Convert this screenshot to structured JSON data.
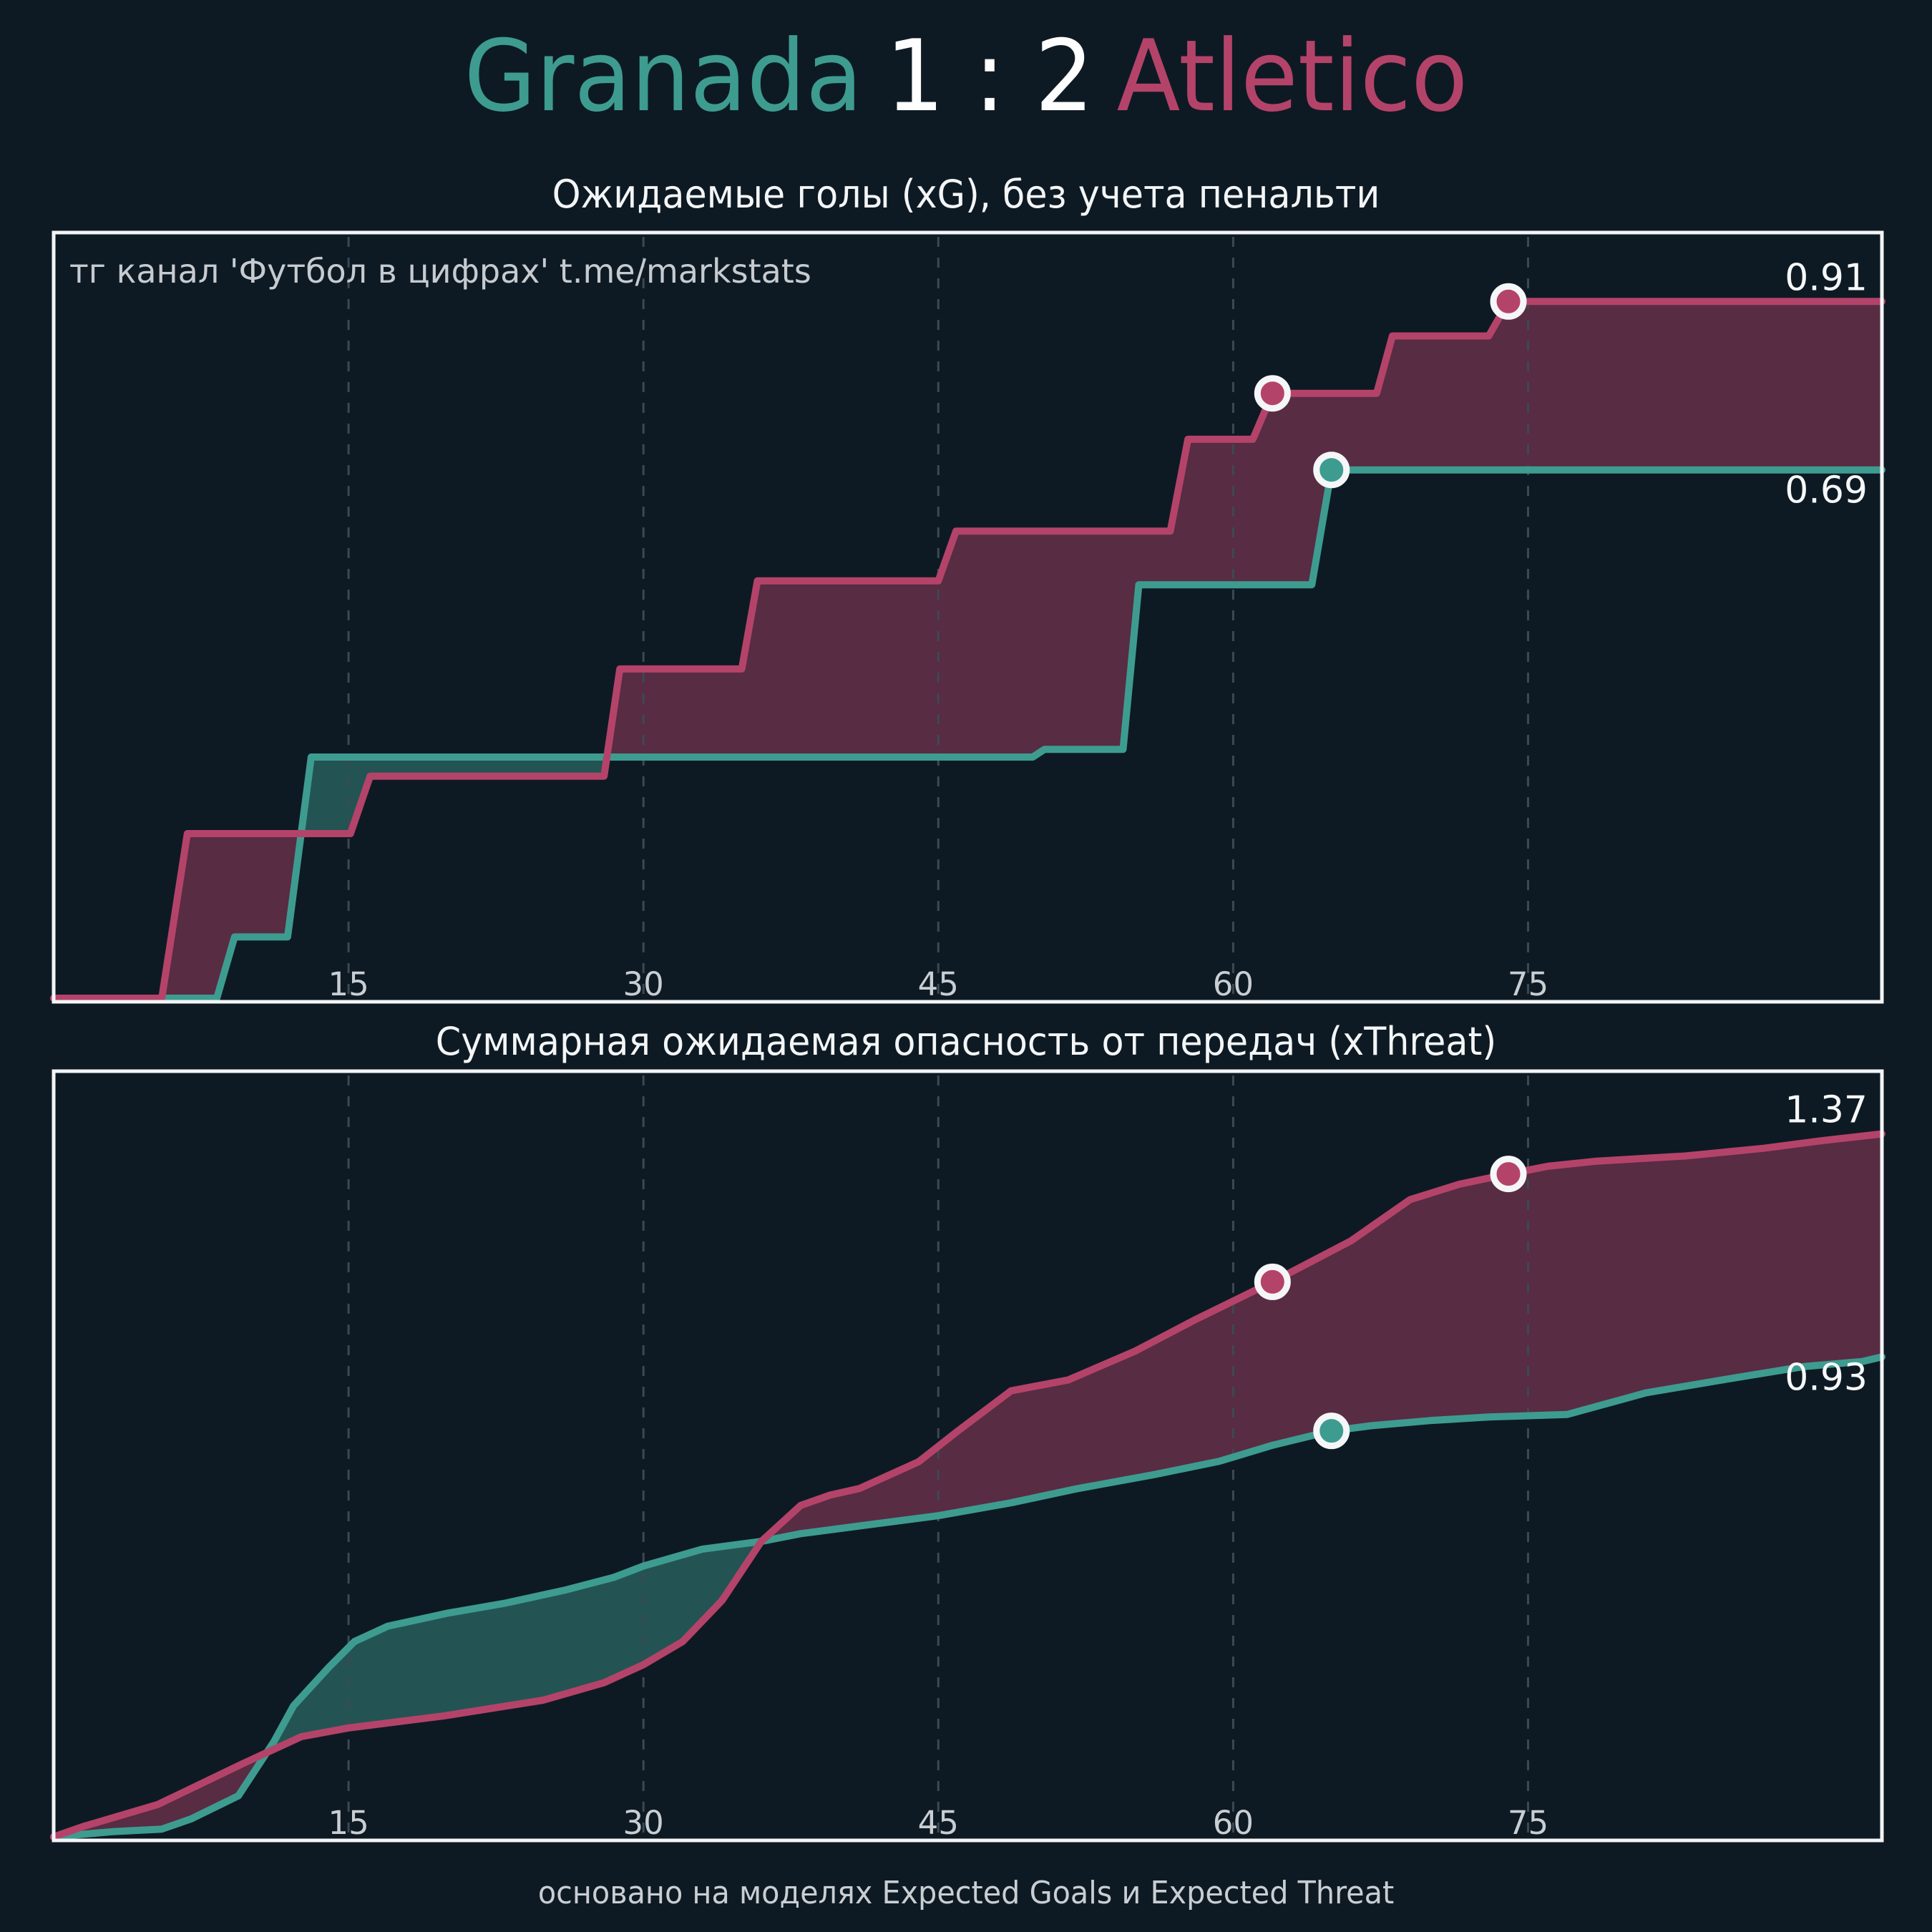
{
  "title": {
    "home_team": "Granada",
    "score": "1 : 2",
    "away_team": "Atletico"
  },
  "footer": "основано на моделях Expected Goals и Expected Threat",
  "colors": {
    "home": "#3d9c8f",
    "away": "#b4436a",
    "background": "#0e1a23",
    "border": "#f2f4f6",
    "grid": "#3d4952",
    "tick_text": "#c9ced3",
    "label_text": "#f5f7f8",
    "marker_ring": "#f5f6f7",
    "fill_opacity": 0.45
  },
  "chart_data": [
    {
      "type": "step-area",
      "title": "Ожидаемые голы (xG), без учета пенальти",
      "watermark": "тг канал 'Футбол в цифрах'  t.me/markstats",
      "xlabel": "",
      "ylabel": "",
      "x_ticks": [
        15,
        30,
        45,
        60,
        75
      ],
      "x_max": 93,
      "y_max": 1.0,
      "grid": "vertical-dashed",
      "legend_position": "none",
      "series": [
        {
          "name": "Granada",
          "role": "home",
          "final_label": "0.69",
          "final_value": 0.69,
          "points": [
            [
              0,
              0
            ],
            [
              8.3,
              0
            ],
            [
              9.2,
              0.08
            ],
            [
              11.9,
              0.08
            ],
            [
              13.1,
              0.315
            ],
            [
              49.8,
              0.315
            ],
            [
              50.4,
              0.325
            ],
            [
              54.4,
              0.325
            ],
            [
              55.2,
              0.54
            ],
            [
              64,
              0.54
            ],
            [
              65,
              0.69
            ],
            [
              93,
              0.69
            ]
          ]
        },
        {
          "name": "Atletico",
          "role": "away",
          "final_label": "0.91",
          "final_value": 0.91,
          "points": [
            [
              0,
              0
            ],
            [
              5.5,
              0
            ],
            [
              6.8,
              0.215
            ],
            [
              15.1,
              0.215
            ],
            [
              16.1,
              0.29
            ],
            [
              28,
              0.29
            ],
            [
              28.8,
              0.43
            ],
            [
              35,
              0.43
            ],
            [
              35.8,
              0.545
            ],
            [
              45,
              0.545
            ],
            [
              45.9,
              0.61
            ],
            [
              56.8,
              0.61
            ],
            [
              57.7,
              0.73
            ],
            [
              61,
              0.73
            ],
            [
              62,
              0.79
            ],
            [
              67.3,
              0.79
            ],
            [
              68.1,
              0.865
            ],
            [
              73,
              0.865
            ],
            [
              74,
              0.91
            ],
            [
              93,
              0.91
            ]
          ]
        }
      ],
      "goal_markers": [
        {
          "team": "away",
          "minute": 62,
          "value": 0.79
        },
        {
          "team": "home",
          "minute": 65,
          "value": 0.69
        },
        {
          "team": "away",
          "minute": 74,
          "value": 0.91
        }
      ]
    },
    {
      "type": "line-area",
      "title": "Суммарная ожидаемая опасность от передач (xThreat)",
      "watermark": "",
      "xlabel": "",
      "ylabel": "",
      "x_ticks": [
        15,
        30,
        45,
        60,
        75
      ],
      "x_max": 93,
      "y_max": 1.49,
      "grid": "vertical-dashed",
      "legend_position": "none",
      "series": [
        {
          "name": "Granada",
          "role": "home",
          "final_label": "0.93",
          "final_value": 0.934,
          "points": [
            [
              0,
              0
            ],
            [
              3,
              0.01
            ],
            [
              5.5,
              0.015
            ],
            [
              7,
              0.035
            ],
            [
              9.4,
              0.08
            ],
            [
              11.2,
              0.185
            ],
            [
              12.2,
              0.255
            ],
            [
              14,
              0.33
            ],
            [
              15.3,
              0.38
            ],
            [
              17,
              0.41
            ],
            [
              20,
              0.435
            ],
            [
              23,
              0.455
            ],
            [
              26,
              0.48
            ],
            [
              28.5,
              0.505
            ],
            [
              30,
              0.527
            ],
            [
              33,
              0.56
            ],
            [
              36,
              0.575
            ],
            [
              38,
              0.59
            ],
            [
              41,
              0.605
            ],
            [
              45,
              0.625
            ],
            [
              48.7,
              0.65
            ],
            [
              52,
              0.677
            ],
            [
              56,
              0.705
            ],
            [
              59.3,
              0.731
            ],
            [
              62,
              0.762
            ],
            [
              65,
              0.79
            ],
            [
              67,
              0.8
            ],
            [
              70,
              0.81
            ],
            [
              73,
              0.817
            ],
            [
              77,
              0.822
            ],
            [
              81,
              0.864
            ],
            [
              85,
              0.89
            ],
            [
              89,
              0.915
            ],
            [
              92,
              0.925
            ],
            [
              93,
              0.934
            ]
          ]
        },
        {
          "name": "Atletico",
          "role": "away",
          "final_label": "1.37",
          "final_value": 1.368,
          "points": [
            [
              0,
              0
            ],
            [
              1.5,
              0.02
            ],
            [
              5.3,
              0.063
            ],
            [
              9.6,
              0.142
            ],
            [
              12.6,
              0.195
            ],
            [
              15,
              0.212
            ],
            [
              19.8,
              0.235
            ],
            [
              24.9,
              0.266
            ],
            [
              28,
              0.3
            ],
            [
              30,
              0.335
            ],
            [
              32,
              0.38
            ],
            [
              34,
              0.46
            ],
            [
              36,
              0.575
            ],
            [
              38,
              0.645
            ],
            [
              39.5,
              0.665
            ],
            [
              41,
              0.678
            ],
            [
              44,
              0.73
            ],
            [
              46,
              0.79
            ],
            [
              48.7,
              0.868
            ],
            [
              51.6,
              0.889
            ],
            [
              55,
              0.945
            ],
            [
              58,
              1.005
            ],
            [
              62,
              1.08
            ],
            [
              66,
              1.16
            ],
            [
              69,
              1.24
            ],
            [
              71.5,
              1.27
            ],
            [
              74,
              1.29
            ],
            [
              76,
              1.305
            ],
            [
              78.5,
              1.315
            ],
            [
              83,
              1.325
            ],
            [
              87,
              1.34
            ],
            [
              90,
              1.355
            ],
            [
              93,
              1.368
            ]
          ]
        }
      ],
      "goal_markers": [
        {
          "team": "away",
          "minute": 62,
          "value": 1.08
        },
        {
          "team": "home",
          "minute": 65,
          "value": 0.79
        },
        {
          "team": "away",
          "minute": 74,
          "value": 1.29
        }
      ]
    }
  ]
}
